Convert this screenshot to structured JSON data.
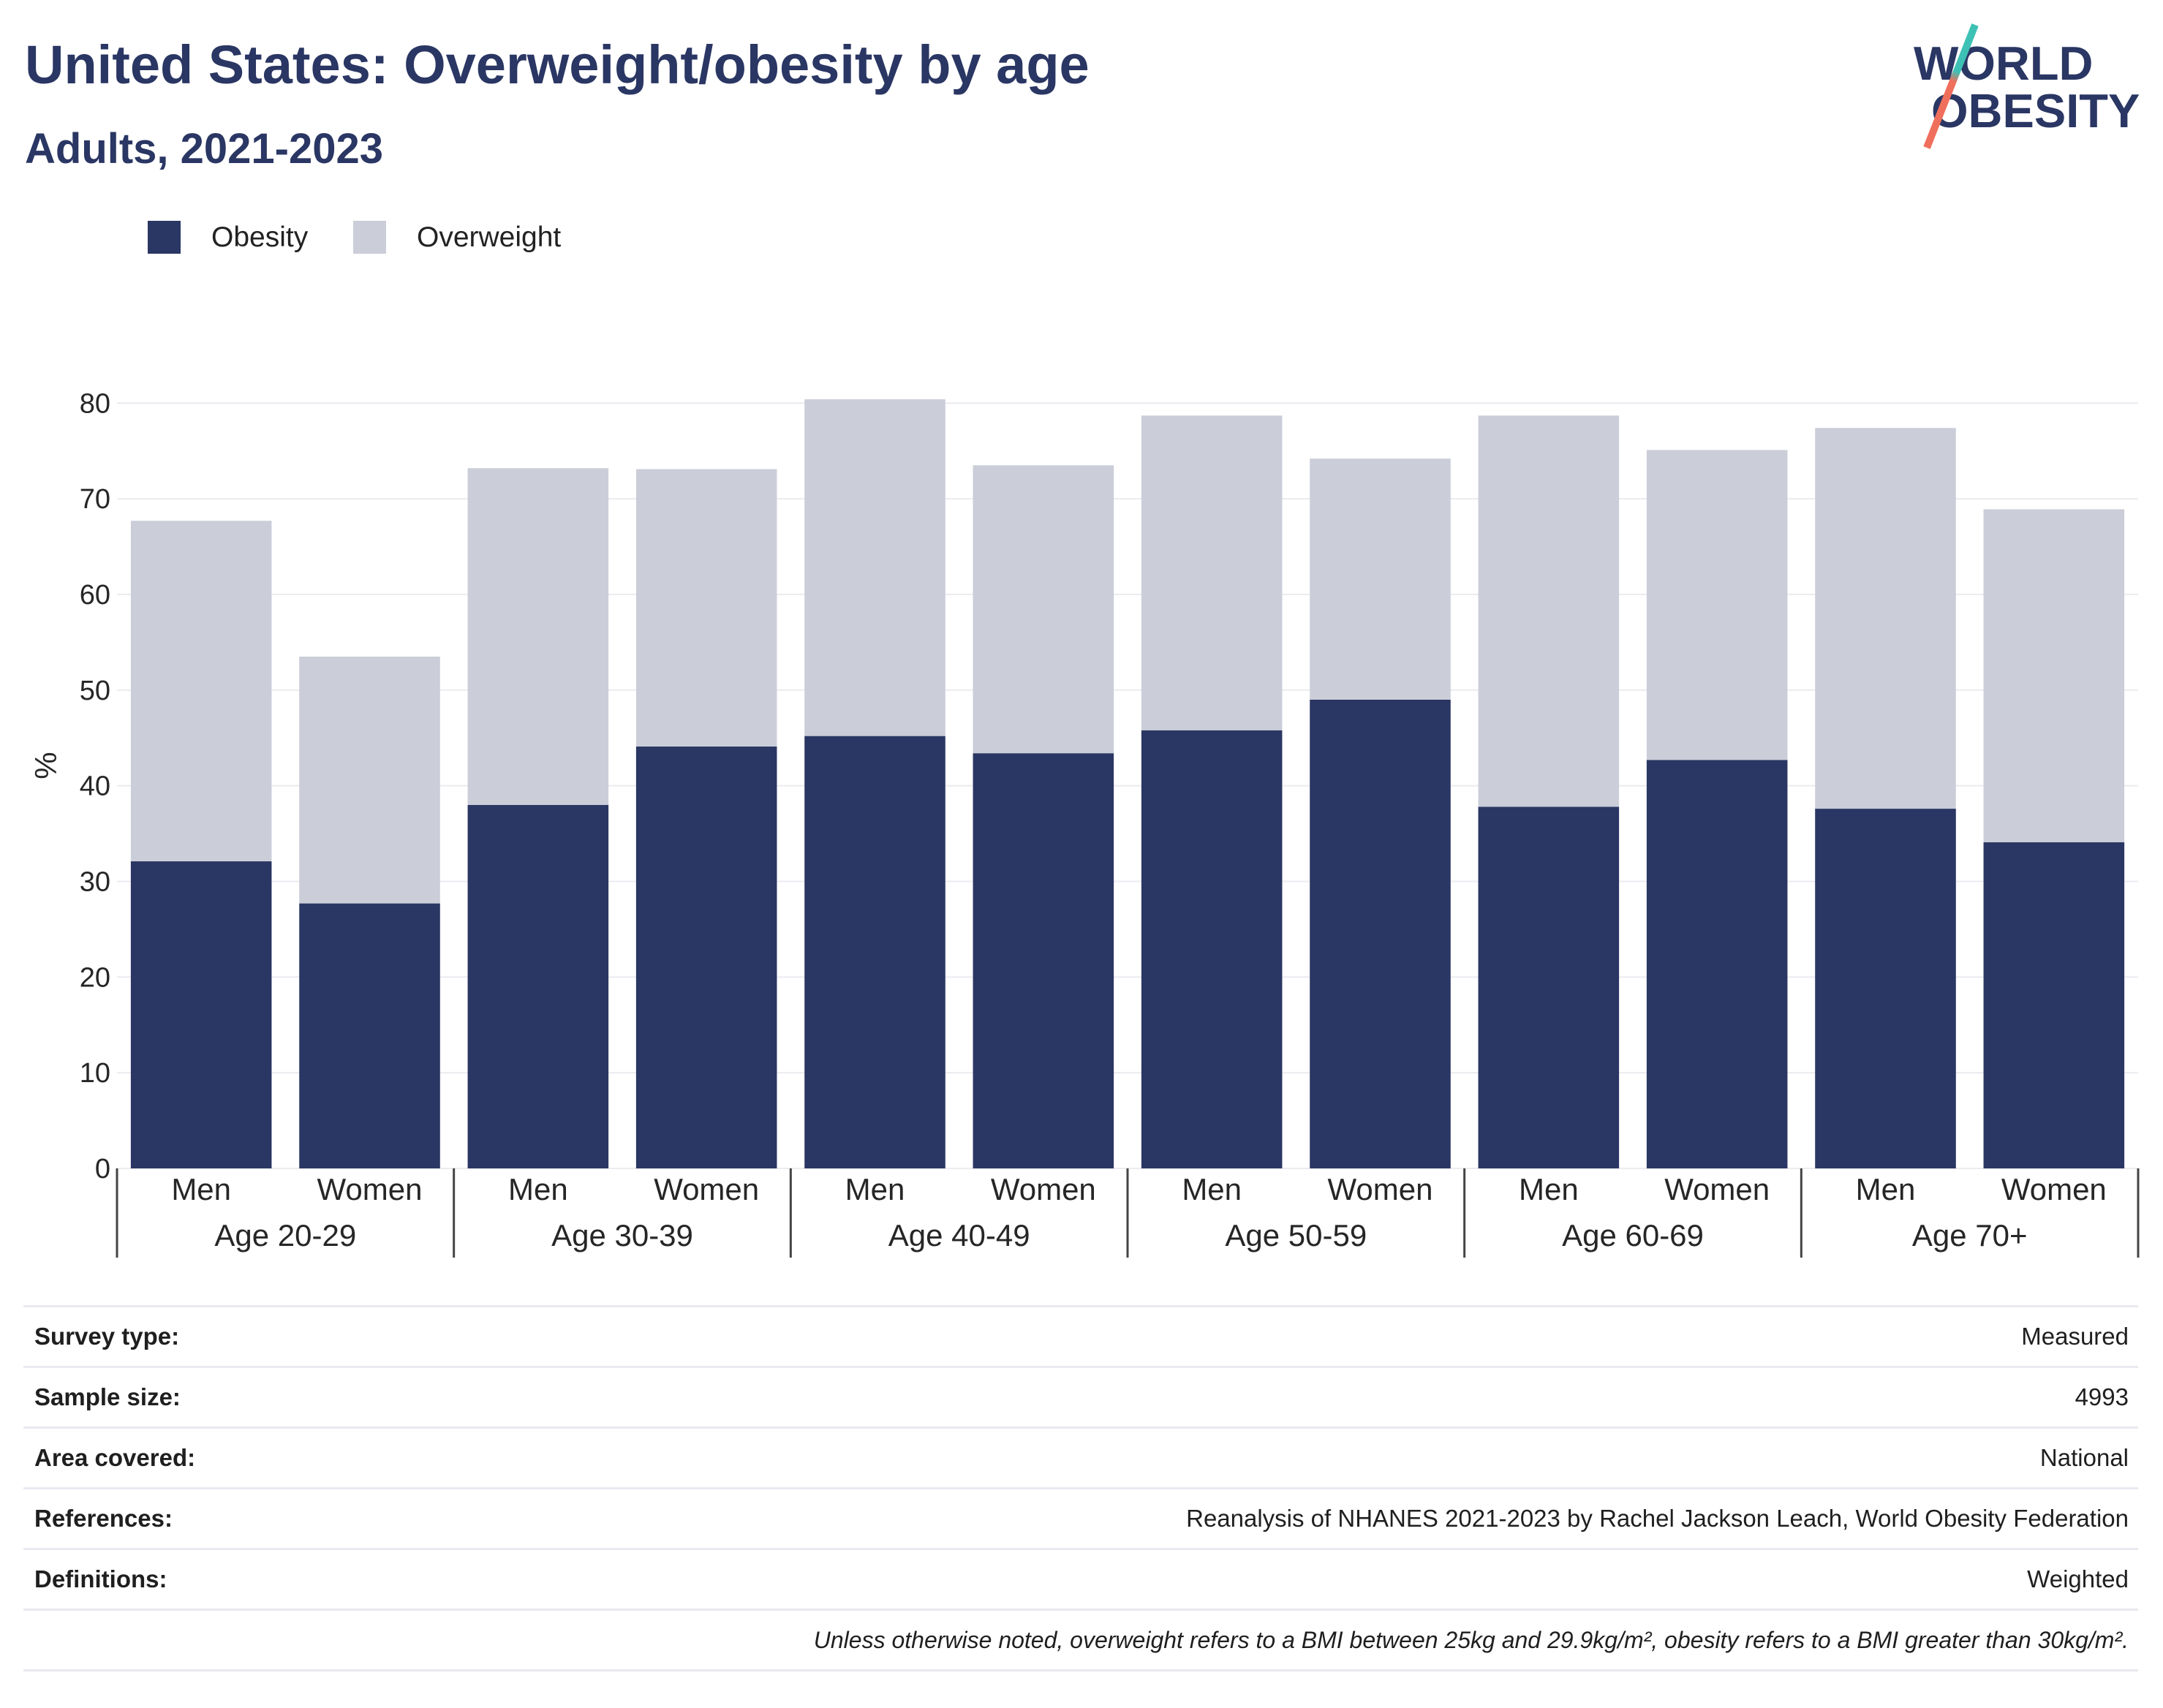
{
  "chart_data": {
    "type": "bar",
    "stacked": true,
    "title": "United States: Overweight/obesity by age",
    "subtitle": "Adults, 2021-2023",
    "ylabel": "%",
    "ylim": [
      0,
      84
    ],
    "yticks": [
      0,
      10,
      20,
      30,
      40,
      50,
      60,
      70,
      80
    ],
    "grid": "horizontal",
    "legend_position": "top-left",
    "groups": [
      {
        "label": "Age 20-29",
        "subcategories": [
          "Men",
          "Women"
        ]
      },
      {
        "label": "Age 30-39",
        "subcategories": [
          "Men",
          "Women"
        ]
      },
      {
        "label": "Age 40-49",
        "subcategories": [
          "Men",
          "Women"
        ]
      },
      {
        "label": "Age 50-59",
        "subcategories": [
          "Men",
          "Women"
        ]
      },
      {
        "label": "Age 60-69",
        "subcategories": [
          "Men",
          "Women"
        ]
      },
      {
        "label": "Age 70+",
        "subcategories": [
          "Men",
          "Women"
        ]
      }
    ],
    "series": [
      {
        "name": "Obesity",
        "color": "#2a3663",
        "values": [
          32.1,
          27.7,
          38.0,
          44.1,
          45.2,
          43.4,
          45.8,
          49.0,
          37.8,
          42.7,
          37.6,
          34.1
        ]
      },
      {
        "name": "Overweight",
        "color": "#cbcdd9",
        "values": [
          35.6,
          25.8,
          35.2,
          29.0,
          35.2,
          30.1,
          32.9,
          25.2,
          40.9,
          32.4,
          39.8,
          34.8
        ]
      }
    ]
  },
  "logo": {
    "line1": "WORLD",
    "line2": "OBESITY",
    "slash_top_color": "#3ec1b5",
    "slash_bottom_color": "#ef6f5c"
  },
  "survey_info": {
    "rows": [
      {
        "label": "Survey type:",
        "value": "Measured"
      },
      {
        "label": "Sample size:",
        "value": "4993"
      },
      {
        "label": "Area covered:",
        "value": "National"
      },
      {
        "label": "References:",
        "value": "Reanalysis of NHANES 2021-2023 by Rachel Jackson Leach, World Obesity Federation"
      },
      {
        "label": "Definitions:",
        "value": "Weighted"
      }
    ],
    "note": "Unless otherwise noted, overweight refers to a BMI between 25kg and 29.9kg/m², obesity refers to a BMI greater than 30kg/m²."
  },
  "colors": {
    "title": "#2a3663",
    "text": "#222222",
    "divider": "#e9e9f1"
  }
}
